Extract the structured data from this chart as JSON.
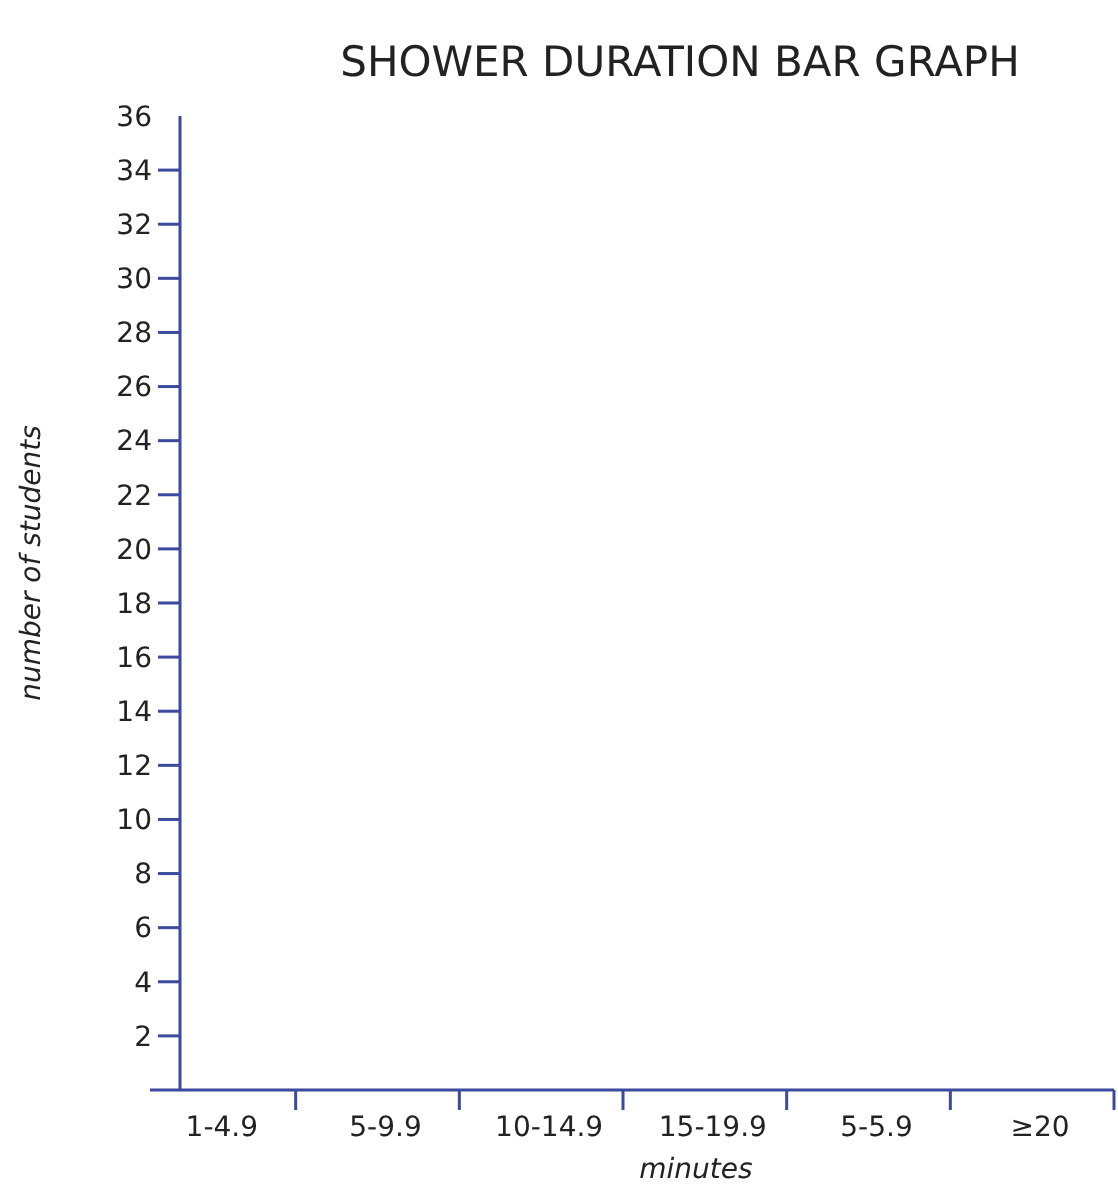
{
  "chart_data": {
    "type": "bar",
    "title": "SHOWER DURATION BAR GRAPH",
    "xlabel": "minutes",
    "ylabel": "number of students",
    "categories": [
      "1-4.9",
      "5-9.9",
      "10-14.9",
      "15-19.9",
      "5-5.9",
      "≥20"
    ],
    "values": [
      null,
      null,
      null,
      null,
      null,
      null
    ],
    "ylim": [
      0,
      36
    ],
    "yticks": [
      {
        "value": 0,
        "label": null
      },
      2,
      4,
      6,
      8,
      10,
      12,
      14,
      16,
      18,
      20,
      22,
      24,
      26,
      28,
      30,
      32,
      34,
      36
    ],
    "grid": false
  }
}
